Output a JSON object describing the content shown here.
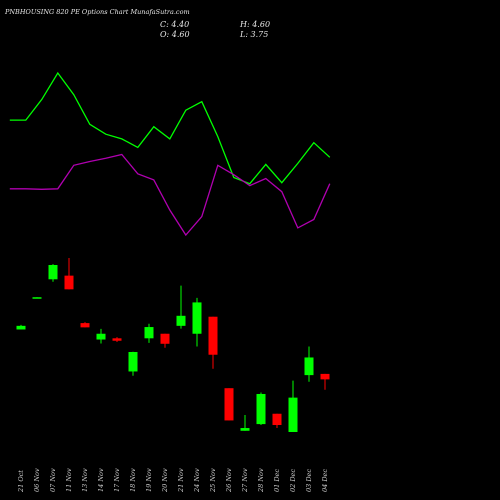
{
  "chart_data": {
    "type": "candlestick",
    "title": "PNBHOUSING 820  PE Options  Chart MunafaSutra.com",
    "ohlc": {
      "close_label": "C: 4.40",
      "open_label": "O: 4.60",
      "high_label": "H: 4.60",
      "low_label": "L: 3.75"
    },
    "colors": {
      "up": "#00ff00",
      "down": "#ff0000",
      "line_upper": "#00ff00",
      "line_lower": "#b000b0",
      "background": "#000000",
      "text": "#e8e8e8"
    },
    "dates": [
      "21 Oct",
      "06 Nov",
      "07 Nov",
      "11 Nov",
      "13 Nov",
      "14 Nov",
      "17 Nov",
      "18 Nov",
      "19 Nov",
      "20 Nov",
      "21 Nov",
      "24 Nov",
      "25 Nov",
      "26 Nov",
      "27 Nov",
      "28 Nov",
      "01 Dec",
      "02 Dec",
      "03 Dec",
      "04 Dec"
    ],
    "candles": [
      {
        "open": 43.0,
        "close": 44.2,
        "high": 44.5,
        "low": 43.0,
        "dir": "up"
      },
      {
        "open": 53.4,
        "close": 53.6,
        "high": 53.6,
        "low": 53.4,
        "dir": "up"
      },
      {
        "open": 59.5,
        "close": 64.2,
        "high": 64.5,
        "low": 58.7,
        "dir": "up"
      },
      {
        "open": 60.7,
        "close": 56.2,
        "high": 66.5,
        "low": 56.2,
        "dir": "down"
      },
      {
        "open": 45.1,
        "close": 43.7,
        "high": 45.4,
        "low": 43.7,
        "dir": "down"
      },
      {
        "open": 39.7,
        "close": 41.6,
        "high": 43.2,
        "low": 38.4,
        "dir": "up"
      },
      {
        "open": 40.1,
        "close": 39.3,
        "high": 40.5,
        "low": 38.9,
        "dir": "down"
      },
      {
        "open": 29.2,
        "close": 35.6,
        "high": 35.7,
        "low": 27.8,
        "dir": "up"
      },
      {
        "open": 40.1,
        "close": 43.8,
        "high": 44.9,
        "low": 38.6,
        "dir": "up"
      },
      {
        "open": 41.6,
        "close": 38.3,
        "high": 41.6,
        "low": 37.0,
        "dir": "down"
      },
      {
        "open": 44.2,
        "close": 47.5,
        "high": 57.4,
        "low": 43.3,
        "dir": "up"
      },
      {
        "open": 41.6,
        "close": 51.9,
        "high": 53.4,
        "low": 37.4,
        "dir": "up"
      },
      {
        "open": 47.2,
        "close": 34.7,
        "high": 47.2,
        "low": 30.1,
        "dir": "down"
      },
      {
        "open": 23.7,
        "close": 13.1,
        "high": 23.7,
        "low": 13.1,
        "dir": "down"
      },
      {
        "open": 9.7,
        "close": 10.6,
        "high": 14.9,
        "low": 9.7,
        "dir": "up"
      },
      {
        "open": 11.9,
        "close": 21.8,
        "high": 22.3,
        "low": 11.6,
        "dir": "up"
      },
      {
        "open": 15.3,
        "close": 11.6,
        "high": 15.3,
        "low": 10.6,
        "dir": "down"
      },
      {
        "open": 9.3,
        "close": 20.6,
        "high": 26.2,
        "low": 9.3,
        "dir": "up"
      },
      {
        "open": 28.0,
        "close": 33.8,
        "high": 37.4,
        "low": 25.8,
        "dir": "up"
      },
      {
        "open": 28.4,
        "close": 26.6,
        "high": 28.4,
        "low": 23.2,
        "dir": "down"
      }
    ],
    "line_x_index": [
      -0.7,
      0.3,
      1.3,
      2.3,
      3.3,
      4.3,
      5.3,
      6.3,
      7.3,
      8.3,
      9.3,
      10.3,
      11.3,
      12.3,
      13.3,
      14.3,
      15.3,
      16.3,
      17.3,
      18.3,
      19.3
    ],
    "upper_line": [
      87.0,
      87.0,
      91.4,
      97.0,
      92.4,
      86.1,
      84.0,
      83.0,
      81.2,
      85.6,
      83.0,
      89.1,
      90.9,
      83.5,
      74.8,
      73.5,
      77.6,
      73.7,
      77.8,
      82.2,
      79.1
    ],
    "lower_line": [
      72.4,
      72.4,
      72.3,
      72.4,
      77.4,
      78.2,
      78.9,
      79.7,
      75.6,
      74.3,
      67.9,
      62.6,
      66.5,
      77.4,
      75.4,
      73.1,
      74.6,
      71.8,
      64.1,
      65.9,
      73.5
    ]
  }
}
